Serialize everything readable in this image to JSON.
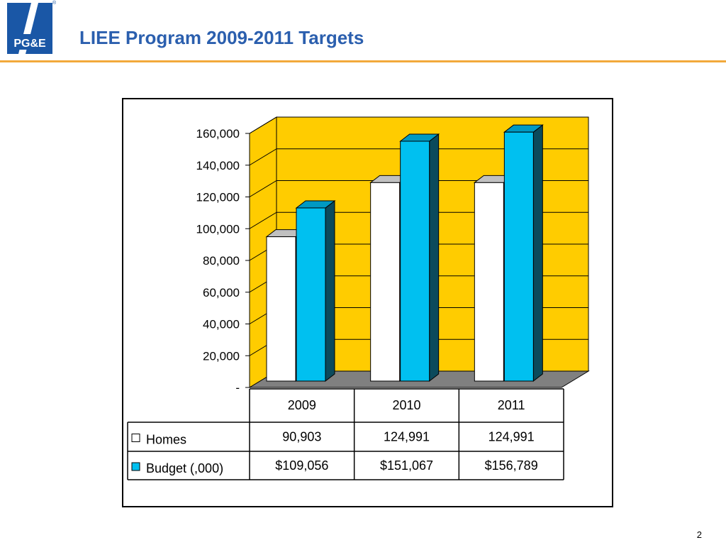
{
  "slide": {
    "title": "LIEE Program 2009-2011 Targets",
    "page_number": "2"
  },
  "logo": {
    "name": "PG&E logo",
    "registered_mark": "®",
    "colors": {
      "brand_blue": "#1a57a6",
      "white": "#ffffff"
    }
  },
  "colors": {
    "title": "#2b5fae",
    "header_rule": "#f2a93b",
    "plot_wall": "#ffcc00",
    "floor": "#808080",
    "homes_bar": "#ffffff",
    "homes_bar_top": "#c0c0c0",
    "budget_bar": "#00c0f0",
    "budget_bar_top": "#0099c2",
    "budget_bar_side": "#0b4a5c"
  },
  "chart_data": {
    "type": "bar",
    "style": "3d clustered column with data table",
    "categories": [
      "2009",
      "2010",
      "2011"
    ],
    "series": [
      {
        "name": "Homes",
        "values": [
          90903,
          124991,
          124991
        ],
        "labels": [
          "90,903",
          "124,991",
          "124,991"
        ],
        "color": "#ffffff"
      },
      {
        "name": "Budget (,000)",
        "values": [
          109056,
          151067,
          156789
        ],
        "labels": [
          "$109,056",
          "$151,067",
          "$156,789"
        ],
        "color": "#00c0f0"
      }
    ],
    "ylim": [
      0,
      160000
    ],
    "yticks": [
      0,
      20000,
      40000,
      60000,
      80000,
      100000,
      120000,
      140000,
      160000
    ],
    "ytick_labels": [
      "-",
      "20,000",
      "40,000",
      "60,000",
      "80,000",
      "100,000",
      "120,000",
      "140,000",
      "160,000"
    ],
    "grid": true,
    "legend": "in data table"
  }
}
